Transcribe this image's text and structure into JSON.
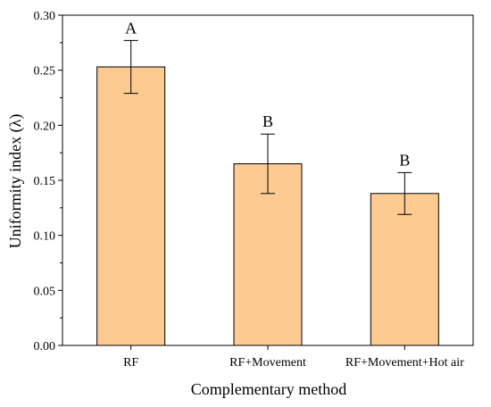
{
  "chart_data": {
    "type": "bar",
    "title": "",
    "xlabel": "Complementary method",
    "ylabel": "Uniformity index (λ)",
    "categories": [
      "RF",
      "RF+Movement",
      "RF+Movement+Hot air"
    ],
    "values": [
      0.253,
      0.165,
      0.138
    ],
    "error": [
      0.024,
      0.027,
      0.019
    ],
    "significance": [
      "A",
      "B",
      "B"
    ],
    "ylim": [
      0,
      0.3
    ],
    "yticks": [
      "0.00",
      "0.05",
      "0.10",
      "0.15",
      "0.20",
      "0.25",
      "0.30"
    ],
    "grid": false,
    "legend": "none",
    "colors": {
      "bar_fill": "#fdca92",
      "bar_stroke": "#000000",
      "axis": "#000000"
    }
  }
}
